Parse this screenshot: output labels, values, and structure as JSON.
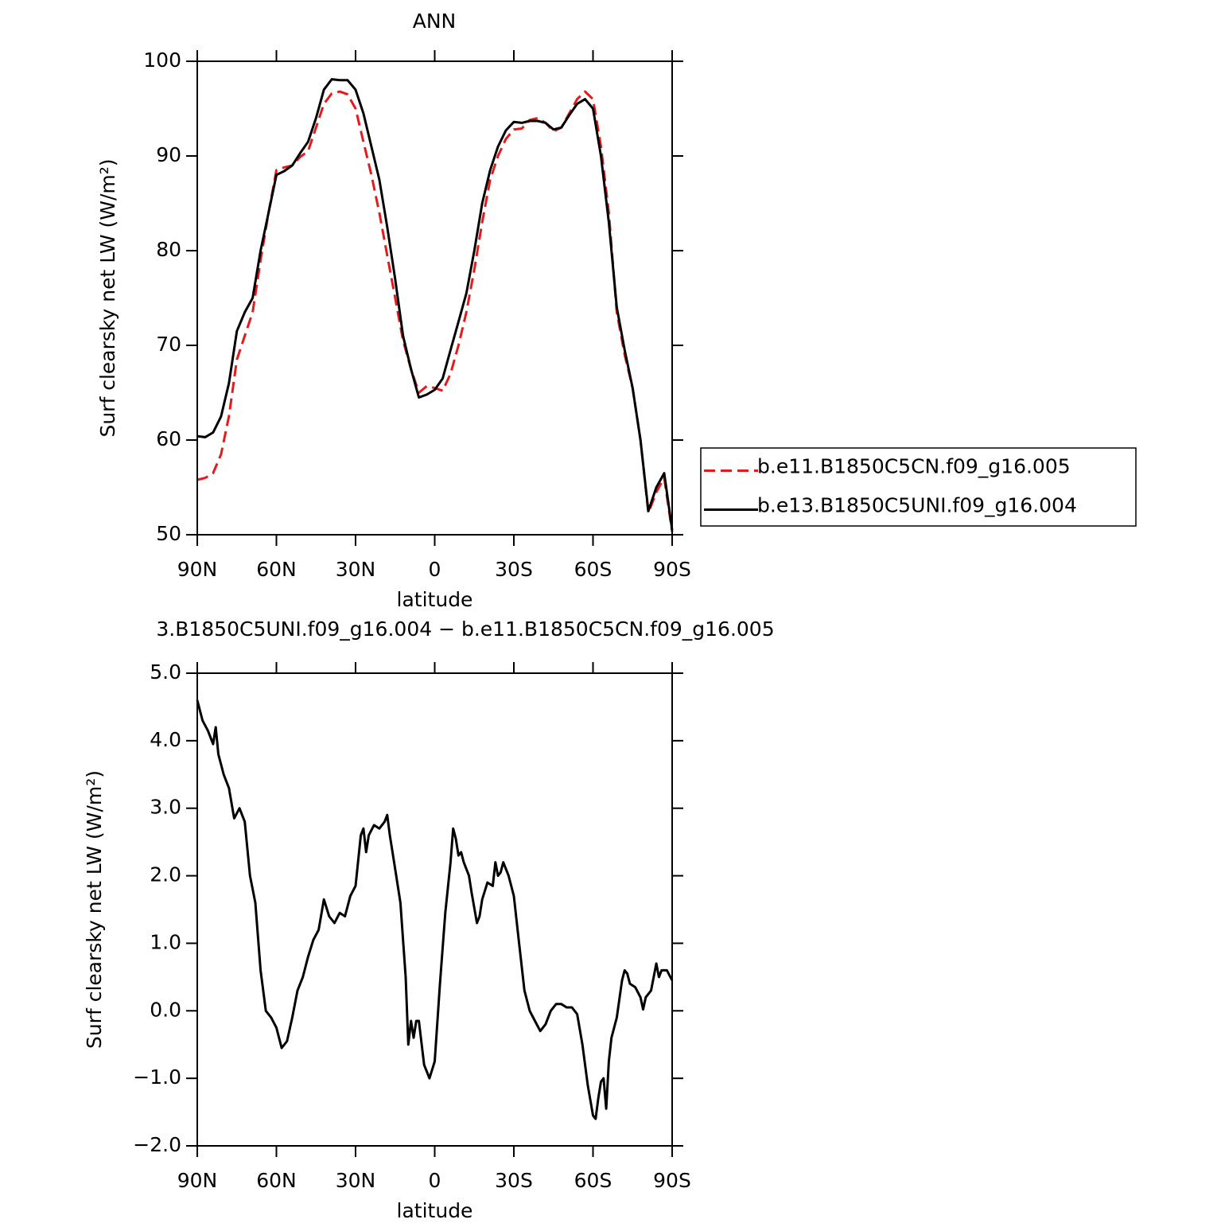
{
  "chart_data": [
    {
      "type": "line",
      "title": "ANN",
      "xlabel": "latitude",
      "ylabel": "Surf clearsky net LW (W/m²)",
      "x": [
        90,
        87,
        84,
        81,
        78,
        75,
        72,
        69,
        66,
        63,
        60,
        57,
        54,
        51,
        48,
        45,
        42,
        39,
        36,
        33,
        30,
        27,
        24,
        21,
        18,
        15,
        12,
        9,
        6,
        3,
        0,
        -3,
        -6,
        -9,
        -12,
        -15,
        -18,
        -21,
        -24,
        -27,
        -30,
        -33,
        -36,
        -39,
        -42,
        -45,
        -48,
        -51,
        -54,
        -57,
        -60,
        -63,
        -66,
        -69,
        -72,
        -75,
        -78,
        -81,
        -84,
        -87,
        -90
      ],
      "series": [
        {
          "name": "b.e11.B1850C5CN.f09_g16.005",
          "color": "#e41a1c",
          "dashed": true,
          "values": [
            55.8,
            56.0,
            56.5,
            58.5,
            62.5,
            68.5,
            71,
            73.5,
            79,
            84,
            88.5,
            88.8,
            89,
            89.9,
            90.5,
            93,
            95.5,
            96.6,
            96.8,
            96.5,
            95,
            91.5,
            88,
            84,
            79.5,
            75,
            70.5,
            67.5,
            65,
            65.7,
            65.5,
            65.2,
            67,
            70,
            73.5,
            78,
            83,
            87.5,
            90,
            91.8,
            92.8,
            92.9,
            93.8,
            94,
            93.5,
            92.6,
            93,
            94.5,
            96,
            96.8,
            96,
            91,
            84,
            73.5,
            69,
            65.5,
            60,
            52.3,
            54.5,
            56,
            50.3
          ]
        },
        {
          "name": "b.e13.B1850C5UNI.f09_g16.004",
          "color": "#000000",
          "dashed": false,
          "values": [
            60.4,
            60.3,
            60.8,
            62.5,
            66,
            71.5,
            73.5,
            75,
            80,
            84,
            88,
            88.4,
            89,
            90.3,
            91.5,
            94,
            97,
            98.1,
            98,
            98,
            97,
            94.5,
            91,
            87.5,
            82.5,
            77,
            71,
            67.5,
            64.5,
            64.8,
            65.3,
            66.5,
            69.5,
            72.5,
            75.5,
            80,
            85,
            88.5,
            91,
            92.7,
            93.6,
            93.5,
            93.7,
            93.7,
            93.5,
            92.8,
            93,
            94.3,
            95.5,
            96,
            95,
            90,
            83,
            74,
            69.5,
            65.5,
            60,
            52.5,
            55,
            56.5,
            50.5
          ]
        }
      ],
      "xlim": [
        90,
        -90
      ],
      "xticks": [
        {
          "value": 90,
          "label": "90N"
        },
        {
          "value": 60,
          "label": "60N"
        },
        {
          "value": 30,
          "label": "30N"
        },
        0,
        {
          "value": -30,
          "label": "30S"
        },
        {
          "value": -60,
          "label": "60S"
        },
        {
          "value": -90,
          "label": "90S"
        }
      ],
      "ylim": [
        50,
        100
      ],
      "yticks": [
        50,
        60,
        70,
        80,
        90,
        100
      ],
      "legend": "right"
    },
    {
      "type": "line",
      "title": "3.B1850C5UNI.f09_g16.004 − b.e11.B1850C5CN.f09_g16.005",
      "xlabel": "latitude",
      "ylabel": "Surf clearsky net LW (W/m²)",
      "x": [
        90,
        88,
        86,
        84,
        83,
        82,
        80,
        78,
        76,
        74,
        72,
        70,
        68,
        66,
        64,
        62,
        60,
        58,
        56,
        54,
        52,
        50,
        48,
        46,
        44,
        42,
        40,
        38,
        36,
        34,
        32,
        30,
        28,
        27,
        26,
        25,
        23,
        21,
        19,
        18,
        17,
        15,
        13,
        11,
        10,
        9,
        8,
        7,
        6,
        4,
        2,
        0,
        -2,
        -4,
        -6,
        -7,
        -8,
        -9,
        -10,
        -11,
        -13,
        -14,
        -16,
        -17,
        -18,
        -20,
        -22,
        -23,
        -24,
        -25,
        -26,
        -28,
        -30,
        -32,
        -34,
        -36,
        -38,
        -40,
        -42,
        -44,
        -46,
        -48,
        -50,
        -52,
        -54,
        -56,
        -58,
        -60,
        -61,
        -62,
        -63,
        -64,
        -65,
        -66,
        -67,
        -69,
        -71,
        -72,
        -73,
        -74,
        -76,
        -78,
        -79,
        -80,
        -82,
        -84,
        -85,
        -86,
        -88,
        -90
      ],
      "values": [
        4.6,
        4.3,
        4.15,
        3.95,
        4.2,
        3.8,
        3.5,
        3.3,
        2.85,
        3.0,
        2.8,
        2.0,
        1.6,
        0.6,
        0.0,
        -0.1,
        -0.25,
        -0.55,
        -0.45,
        -0.1,
        0.3,
        0.5,
        0.8,
        1.05,
        1.2,
        1.65,
        1.4,
        1.3,
        1.45,
        1.4,
        1.7,
        1.85,
        2.6,
        2.7,
        2.35,
        2.6,
        2.75,
        2.7,
        2.8,
        2.9,
        2.6,
        2.1,
        1.6,
        0.5,
        -0.5,
        -0.15,
        -0.4,
        -0.15,
        -0.15,
        -0.8,
        -1.0,
        -0.75,
        0.4,
        1.45,
        2.2,
        2.7,
        2.55,
        2.3,
        2.35,
        2.2,
        2.0,
        1.75,
        1.3,
        1.4,
        1.65,
        1.9,
        1.85,
        2.2,
        2.0,
        2.05,
        2.2,
        2.0,
        1.7,
        1.0,
        0.3,
        0.0,
        -0.15,
        -0.3,
        -0.2,
        0.0,
        0.1,
        0.1,
        0.05,
        0.05,
        -0.05,
        -0.5,
        -1.1,
        -1.55,
        -1.6,
        -1.3,
        -1.05,
        -1.0,
        -1.45,
        -0.75,
        -0.4,
        -0.1,
        0.45,
        0.6,
        0.55,
        0.4,
        0.35,
        0.2,
        0.02,
        0.2,
        0.3,
        0.7,
        0.5,
        0.6,
        0.6,
        0.45
      ],
      "color": "#000000",
      "xlim": [
        90,
        -90
      ],
      "xticks": [
        {
          "value": 90,
          "label": "90N"
        },
        {
          "value": 60,
          "label": "60N"
        },
        {
          "value": 30,
          "label": "30N"
        },
        0,
        {
          "value": -30,
          "label": "30S"
        },
        {
          "value": -60,
          "label": "60S"
        },
        {
          "value": -90,
          "label": "90S"
        }
      ],
      "ylim": [
        -2,
        5
      ],
      "yticks": [
        {
          "value": -2,
          "label": "−2.0"
        },
        {
          "value": -1,
          "label": "−1.0"
        },
        {
          "value": 0,
          "label": "0.0"
        },
        {
          "value": 1,
          "label": "1.0"
        },
        {
          "value": 2,
          "label": "2.0"
        },
        {
          "value": 3,
          "label": "3.0"
        },
        {
          "value": 4,
          "label": "4.0"
        },
        {
          "value": 5,
          "label": "5.0"
        }
      ]
    }
  ]
}
